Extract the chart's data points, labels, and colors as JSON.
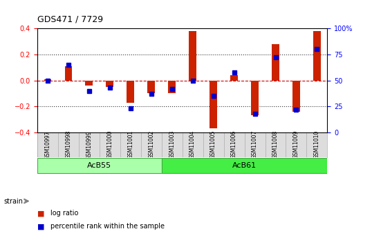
{
  "title": "GDS471 / 7729",
  "samples": [
    "GSM10997",
    "GSM10998",
    "GSM10999",
    "GSM11000",
    "GSM11001",
    "GSM11002",
    "GSM11003",
    "GSM11004",
    "GSM11005",
    "GSM11006",
    "GSM11007",
    "GSM11008",
    "GSM11009",
    "GSM11010"
  ],
  "log_ratio": [
    0.01,
    0.11,
    -0.04,
    -0.05,
    -0.17,
    -0.1,
    -0.1,
    0.38,
    -0.37,
    0.04,
    -0.27,
    0.28,
    -0.24,
    0.38
  ],
  "percentile": [
    50,
    65,
    40,
    43,
    23,
    37,
    42,
    50,
    35,
    58,
    18,
    72,
    22,
    80
  ],
  "groups": [
    {
      "label": "AcB55",
      "start": 0,
      "end": 6,
      "color": "#aaffaa"
    },
    {
      "label": "AcB61",
      "start": 6,
      "end": 14,
      "color": "#44ee44"
    }
  ],
  "ylim": [
    -0.4,
    0.4
  ],
  "y2lim": [
    0,
    100
  ],
  "y_ticks": [
    -0.4,
    -0.2,
    0.0,
    0.2,
    0.4
  ],
  "y2_ticks": [
    0,
    25,
    50,
    75,
    100
  ],
  "bar_color": "#cc2200",
  "dot_color": "#0000cc",
  "dotted_line_color": "#333333",
  "zero_line_color": "#cc0000",
  "bg_color": "#ffffff",
  "plot_bg": "#f0f0f0",
  "strain_label": "strain",
  "legend_items": [
    "log ratio",
    "percentile rank within the sample"
  ]
}
